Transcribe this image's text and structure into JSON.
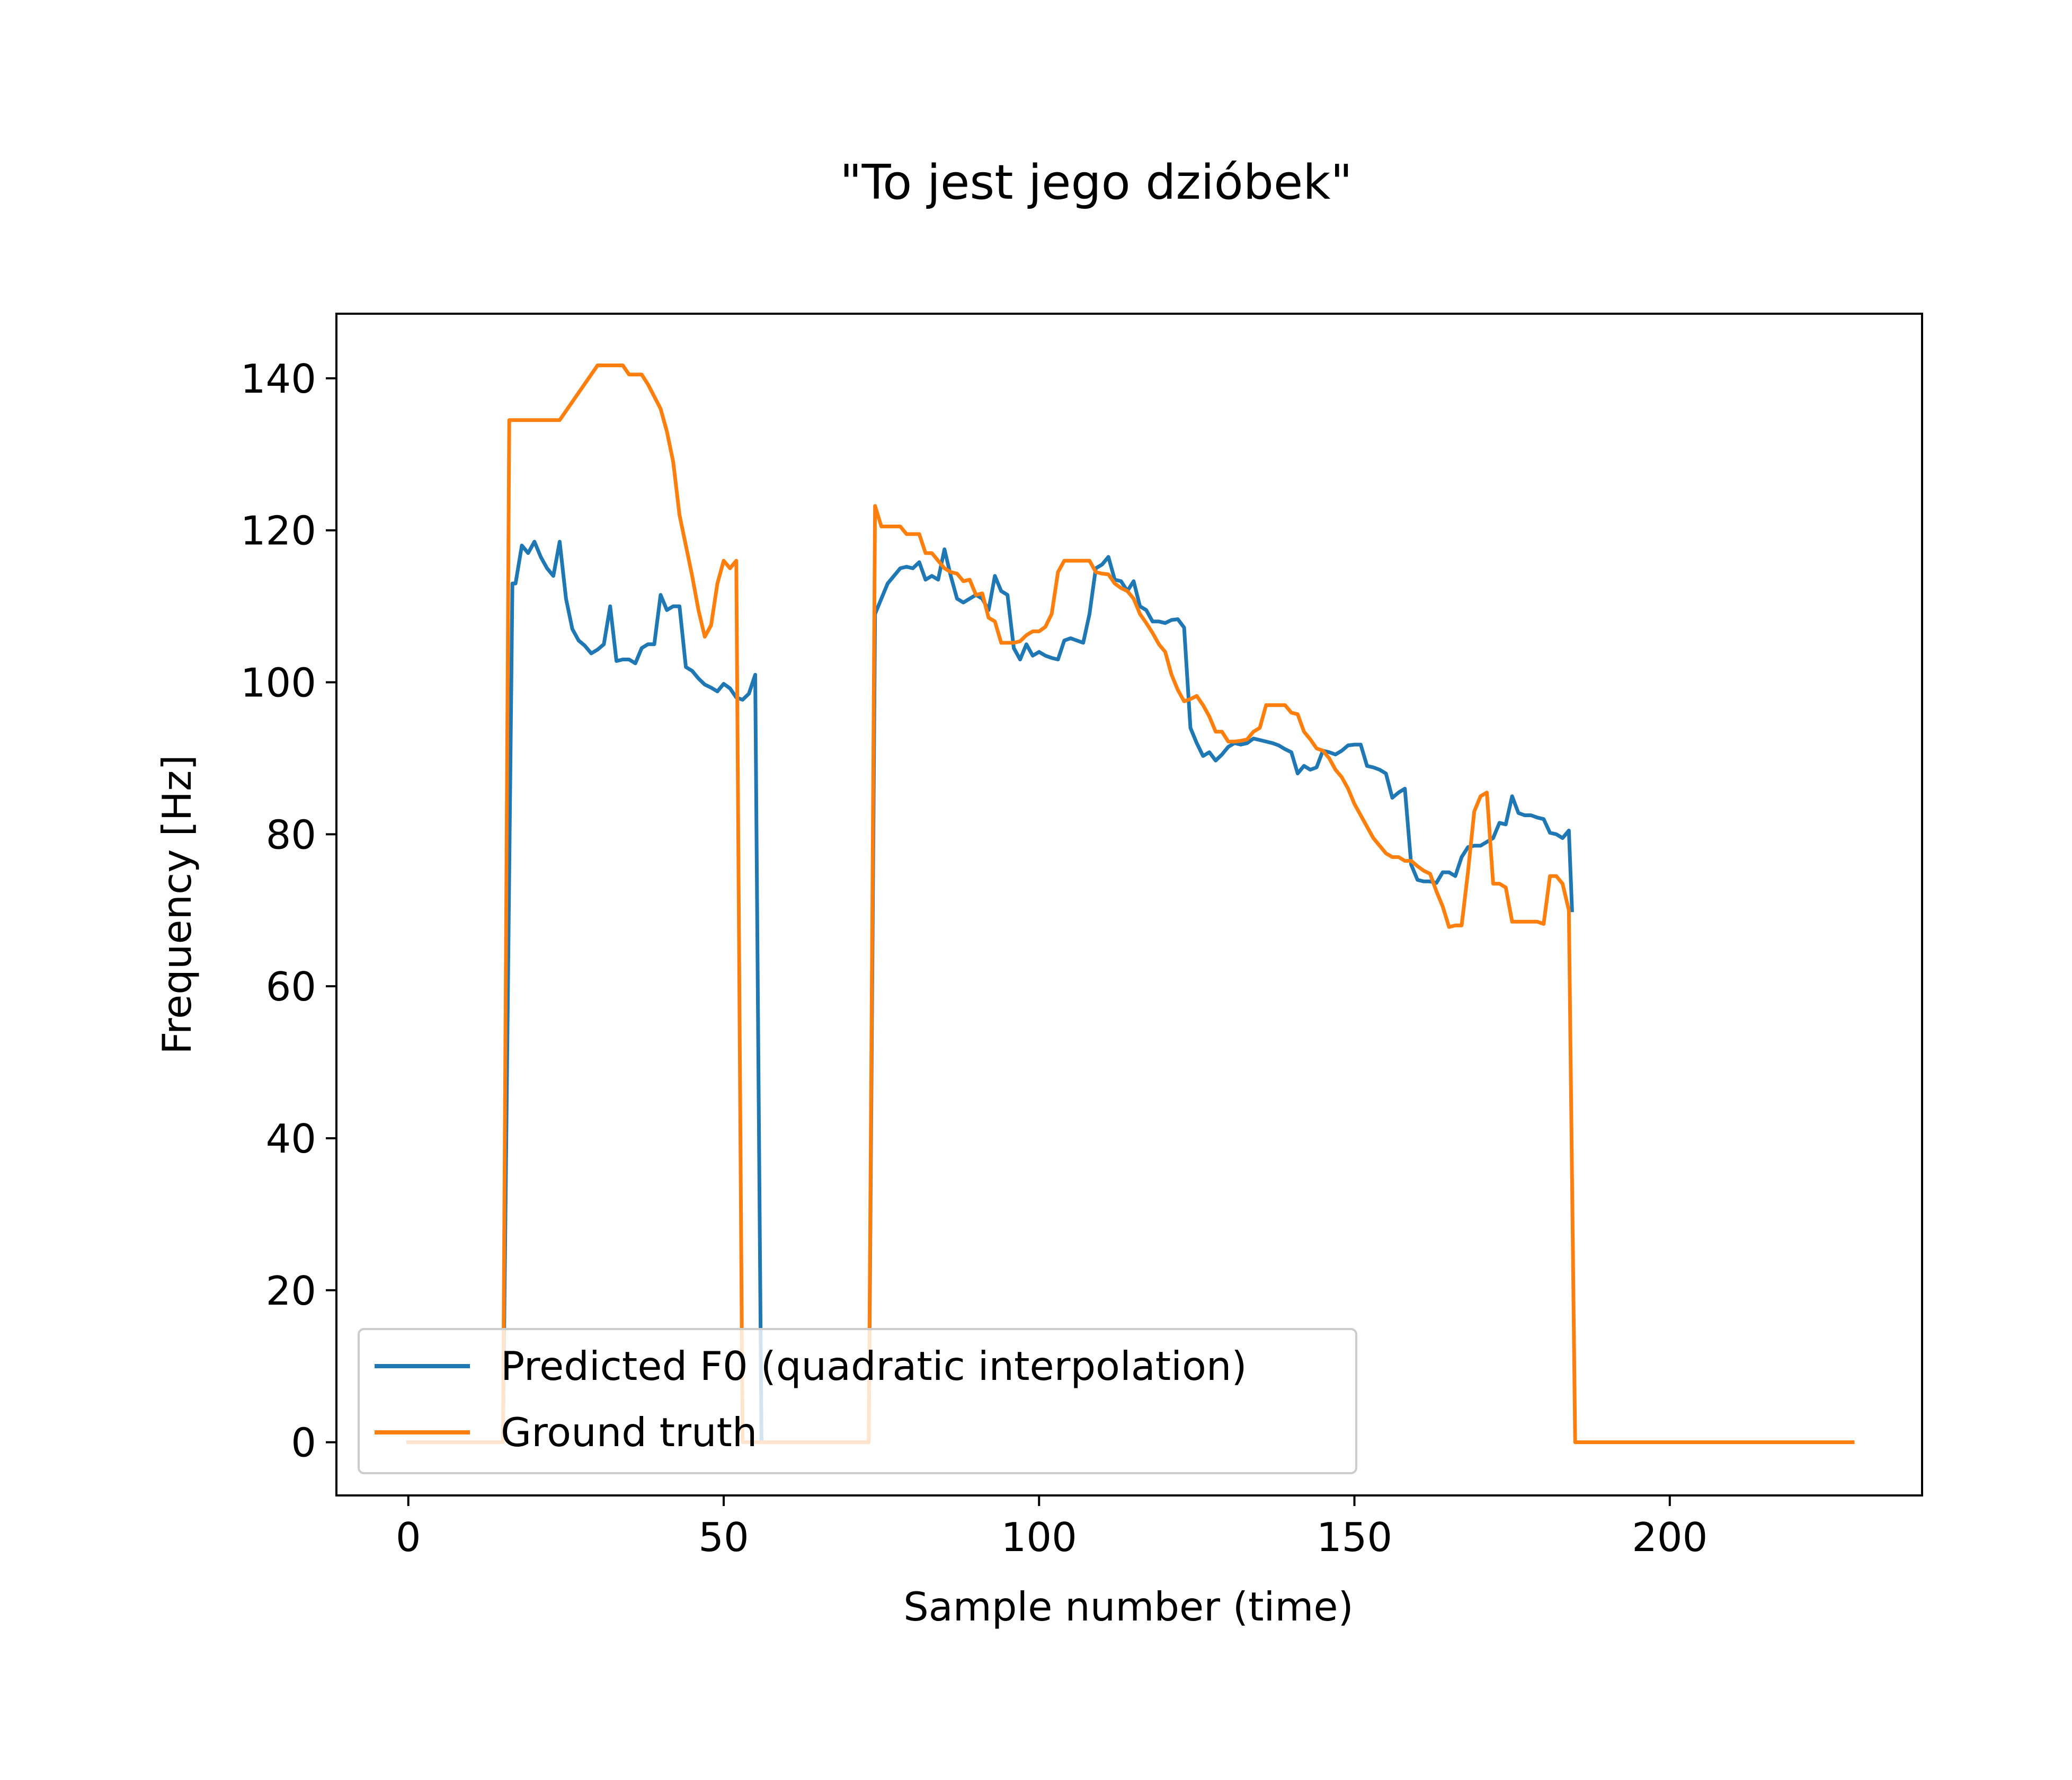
{
  "chart_data": {
    "type": "line",
    "title": "\"To jest jego dziόbek\"",
    "xlabel": "Sample number (time)",
    "ylabel": "Frequency [Hz]",
    "xlim": [
      -11.4,
      240
    ],
    "ylim": [
      -7,
      148.5
    ],
    "x_ticks": [
      0,
      50,
      100,
      150,
      200
    ],
    "y_ticks": [
      0,
      20,
      40,
      60,
      80,
      100,
      120,
      140
    ],
    "x_tick_labels": [
      "0",
      "50",
      "100",
      "150",
      "200"
    ],
    "y_tick_labels": [
      "0",
      "20",
      "40",
      "60",
      "80",
      "100",
      "120",
      "140"
    ],
    "grid": false,
    "legend_position": "lower-left",
    "series": [
      {
        "name": "Predicted F0 (quadratic interpolation)",
        "color": "#1f77b4",
        "points": [
          [
            0,
            0
          ],
          [
            15,
            0
          ],
          [
            16.5,
            113
          ],
          [
            17,
            113
          ],
          [
            18,
            118
          ],
          [
            19,
            117
          ],
          [
            20,
            118.5
          ],
          [
            21,
            116.5
          ],
          [
            22,
            115
          ],
          [
            23,
            114
          ],
          [
            24,
            118.5
          ],
          [
            25,
            111
          ],
          [
            26,
            107
          ],
          [
            27,
            105.5
          ],
          [
            28,
            104.8
          ],
          [
            29,
            103.8
          ],
          [
            30,
            104.3
          ],
          [
            31,
            105
          ],
          [
            32,
            110
          ],
          [
            33,
            102.8
          ],
          [
            34,
            103
          ],
          [
            35,
            103
          ],
          [
            36,
            102.5
          ],
          [
            37,
            104.5
          ],
          [
            38,
            105
          ],
          [
            39,
            105
          ],
          [
            40,
            111.5
          ],
          [
            41,
            109.5
          ],
          [
            42,
            110
          ],
          [
            43,
            110
          ],
          [
            44,
            102
          ],
          [
            45,
            101.5
          ],
          [
            46,
            100.5
          ],
          [
            47,
            99.7
          ],
          [
            48,
            99.3
          ],
          [
            49,
            98.8
          ],
          [
            50,
            99.8
          ],
          [
            51,
            99.2
          ],
          [
            52,
            98
          ],
          [
            53,
            97.7
          ],
          [
            54,
            98.5
          ],
          [
            55,
            101
          ],
          [
            56,
            0
          ],
          [
            73,
            0
          ],
          [
            74,
            109
          ],
          [
            75,
            111
          ],
          [
            76,
            113
          ],
          [
            77,
            114
          ],
          [
            78,
            115
          ],
          [
            79,
            115.2
          ],
          [
            80,
            115
          ],
          [
            81,
            115.8
          ],
          [
            82,
            113.5
          ],
          [
            83,
            114
          ],
          [
            84,
            113.5
          ],
          [
            85,
            117.5
          ],
          [
            86,
            114
          ],
          [
            87,
            111
          ],
          [
            88,
            110.5
          ],
          [
            89,
            111
          ],
          [
            90,
            111.5
          ],
          [
            91,
            111
          ],
          [
            92,
            109.5
          ],
          [
            93,
            114
          ],
          [
            94,
            112
          ],
          [
            95,
            111.5
          ],
          [
            96,
            104.5
          ],
          [
            97,
            103
          ],
          [
            98,
            105
          ],
          [
            99,
            103.5
          ],
          [
            100,
            104
          ],
          [
            101,
            103.5
          ],
          [
            102,
            103.2
          ],
          [
            103,
            103
          ],
          [
            104,
            105.5
          ],
          [
            105,
            105.8
          ],
          [
            106,
            105.5
          ],
          [
            107,
            105.2
          ],
          [
            108,
            109
          ],
          [
            109,
            115
          ],
          [
            110,
            115.5
          ],
          [
            111,
            116.5
          ],
          [
            112,
            113.5
          ],
          [
            113,
            113.3
          ],
          [
            114,
            112
          ],
          [
            115,
            113.3
          ],
          [
            116,
            110
          ],
          [
            117,
            109.5
          ],
          [
            118,
            108
          ],
          [
            119,
            108
          ],
          [
            120,
            107.8
          ],
          [
            121,
            108.2
          ],
          [
            122,
            108.3
          ],
          [
            123,
            107.2
          ],
          [
            124,
            94
          ],
          [
            125,
            92
          ],
          [
            126,
            90.3
          ],
          [
            127,
            90.8
          ],
          [
            128,
            89.7
          ],
          [
            129,
            90.5
          ],
          [
            130,
            91.5
          ],
          [
            131,
            92
          ],
          [
            132,
            91.8
          ],
          [
            133,
            92
          ],
          [
            134,
            92.6
          ],
          [
            135,
            92.4
          ],
          [
            136,
            92.2
          ],
          [
            137,
            92
          ],
          [
            138,
            91.7
          ],
          [
            139,
            91.2
          ],
          [
            140,
            90.8
          ],
          [
            141,
            88
          ],
          [
            142,
            89
          ],
          [
            143,
            88.5
          ],
          [
            144,
            88.8
          ],
          [
            145,
            91
          ],
          [
            146,
            90.8
          ],
          [
            147,
            90.5
          ],
          [
            148,
            91
          ],
          [
            149,
            91.7
          ],
          [
            150,
            91.8
          ],
          [
            151,
            91.8
          ],
          [
            152,
            89
          ],
          [
            153,
            88.8
          ],
          [
            154,
            88.5
          ],
          [
            155,
            88
          ],
          [
            156,
            84.8
          ],
          [
            157,
            85.5
          ],
          [
            158,
            86
          ],
          [
            159,
            76
          ],
          [
            160,
            74
          ],
          [
            161,
            73.8
          ],
          [
            162,
            73.8
          ],
          [
            163,
            73.6
          ],
          [
            164,
            75
          ],
          [
            165,
            75
          ],
          [
            166,
            74.5
          ],
          [
            167,
            77
          ],
          [
            168,
            78.3
          ],
          [
            169,
            78.5
          ],
          [
            170,
            78.5
          ],
          [
            171,
            79
          ],
          [
            172,
            79.5
          ],
          [
            173,
            81.5
          ],
          [
            174,
            81.3
          ],
          [
            175,
            85
          ],
          [
            176,
            82.8
          ],
          [
            177,
            82.5
          ],
          [
            178,
            82.5
          ],
          [
            179,
            82.2
          ],
          [
            180,
            82
          ],
          [
            181,
            80.2
          ],
          [
            182,
            80
          ],
          [
            183,
            79.5
          ],
          [
            184,
            80.5
          ],
          [
            184.5,
            70
          ]
        ]
      },
      {
        "name": "Ground truth",
        "color": "#ff7f0e",
        "points": [
          [
            0,
            0
          ],
          [
            15,
            0
          ],
          [
            16,
            134.5
          ],
          [
            24,
            134.5
          ],
          [
            30,
            141.7
          ],
          [
            34,
            141.7
          ],
          [
            35,
            140.5
          ],
          [
            37,
            140.5
          ],
          [
            38,
            139.2
          ],
          [
            40,
            136
          ],
          [
            41,
            133
          ],
          [
            42,
            129
          ],
          [
            43,
            122
          ],
          [
            44,
            118
          ],
          [
            45,
            114
          ],
          [
            46,
            109.5
          ],
          [
            47,
            106
          ],
          [
            48,
            107.5
          ],
          [
            49,
            113
          ],
          [
            50,
            116
          ],
          [
            51,
            115
          ],
          [
            52,
            116
          ],
          [
            53,
            0
          ],
          [
            73,
            0
          ],
          [
            74,
            123.2
          ],
          [
            75,
            120.5
          ],
          [
            76,
            120.5
          ],
          [
            77,
            120.5
          ],
          [
            78,
            120.5
          ],
          [
            79,
            119.5
          ],
          [
            80,
            119.5
          ],
          [
            81,
            119.5
          ],
          [
            82,
            117
          ],
          [
            83,
            117
          ],
          [
            84,
            116
          ],
          [
            85,
            115
          ],
          [
            86,
            114.5
          ],
          [
            87,
            114.3
          ],
          [
            88,
            113.3
          ],
          [
            89,
            113.5
          ],
          [
            90,
            111.5
          ],
          [
            91,
            111.7
          ],
          [
            92,
            108.5
          ],
          [
            93,
            108
          ],
          [
            94,
            105.2
          ],
          [
            95,
            105.2
          ],
          [
            96,
            105.2
          ],
          [
            97,
            105.4
          ],
          [
            98,
            106.2
          ],
          [
            99,
            106.7
          ],
          [
            100,
            106.7
          ],
          [
            101,
            107.3
          ],
          [
            102,
            109
          ],
          [
            103,
            114.5
          ],
          [
            104,
            116
          ],
          [
            105,
            116
          ],
          [
            106,
            116
          ],
          [
            107,
            116
          ],
          [
            108,
            116
          ],
          [
            109,
            114.5
          ],
          [
            110,
            114.3
          ],
          [
            111,
            114.2
          ],
          [
            112,
            113
          ],
          [
            113,
            112.4
          ],
          [
            114,
            112
          ],
          [
            115,
            111
          ],
          [
            116,
            109
          ],
          [
            117,
            107.8
          ],
          [
            118,
            106.5
          ],
          [
            119,
            105
          ],
          [
            120,
            104
          ],
          [
            121,
            101
          ],
          [
            122,
            99
          ],
          [
            123,
            97.5
          ],
          [
            124,
            97.8
          ],
          [
            125,
            98.2
          ],
          [
            126,
            97
          ],
          [
            127,
            95.5
          ],
          [
            128,
            93.5
          ],
          [
            129,
            93.5
          ],
          [
            130,
            92.2
          ],
          [
            131,
            92.2
          ],
          [
            132,
            92.3
          ],
          [
            133,
            92.5
          ],
          [
            134,
            93.5
          ],
          [
            135,
            94
          ],
          [
            136,
            97
          ],
          [
            137,
            97
          ],
          [
            138,
            97
          ],
          [
            139,
            97
          ],
          [
            140,
            96
          ],
          [
            141,
            95.8
          ],
          [
            142,
            93.5
          ],
          [
            143,
            92.5
          ],
          [
            144,
            91.3
          ],
          [
            145,
            91
          ],
          [
            146,
            90
          ],
          [
            147,
            88.5
          ],
          [
            148,
            87.5
          ],
          [
            149,
            86
          ],
          [
            150,
            84
          ],
          [
            151,
            82.5
          ],
          [
            152,
            81
          ],
          [
            153,
            79.5
          ],
          [
            154,
            78.5
          ],
          [
            155,
            77.5
          ],
          [
            156,
            77
          ],
          [
            157,
            77
          ],
          [
            158,
            76.5
          ],
          [
            159,
            76.5
          ],
          [
            160,
            75.8
          ],
          [
            161,
            75.2
          ],
          [
            162,
            74.8
          ],
          [
            163,
            72.5
          ],
          [
            164,
            70.5
          ],
          [
            165,
            67.8
          ],
          [
            166,
            68
          ],
          [
            167,
            68
          ],
          [
            168,
            75
          ],
          [
            169,
            83
          ],
          [
            170,
            85
          ],
          [
            171,
            85.5
          ],
          [
            172,
            73.5
          ],
          [
            173,
            73.5
          ],
          [
            174,
            73
          ],
          [
            175,
            68.5
          ],
          [
            176,
            68.5
          ],
          [
            177,
            68.5
          ],
          [
            178,
            68.5
          ],
          [
            179,
            68.5
          ],
          [
            180,
            68.2
          ],
          [
            181,
            74.5
          ],
          [
            182,
            74.5
          ],
          [
            183,
            73.5
          ],
          [
            184,
            70
          ],
          [
            185,
            0
          ],
          [
            229,
            0
          ]
        ]
      }
    ]
  }
}
